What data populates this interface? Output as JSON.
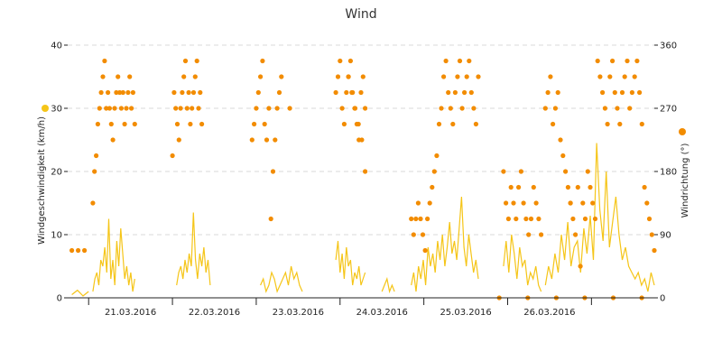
{
  "chart_data": {
    "type": "line+scatter",
    "title": "Wind",
    "colors": {
      "speed": "#f5c518",
      "direction": "#f28c00"
    },
    "left_axis": {
      "label": "Windgeschwindigkeit (km/h)",
      "range": [
        0,
        40
      ],
      "ticks": [
        0,
        10,
        20,
        30,
        40
      ]
    },
    "right_axis": {
      "label": "Windrichtung (°)",
      "range": [
        0,
        360
      ],
      "ticks": [
        0,
        90,
        180,
        270,
        360
      ]
    },
    "x_axis": {
      "range_days": [
        -0.25,
        6.75
      ],
      "tick_labels": [
        "21.03.2016",
        "22.03.2016",
        "23.03.2016",
        "24.03.2016",
        "25.03.2016",
        "26.03.2016"
      ],
      "tick_label_days": [
        0.5,
        1.5,
        2.5,
        3.5,
        4.5,
        5.5
      ],
      "divider_days": [
        0,
        1,
        2,
        3,
        4,
        5,
        6
      ]
    },
    "grid": true,
    "series": [
      {
        "kind": "line",
        "axis": "left",
        "segments": [
          {
            "start": -0.2,
            "end": 0.0,
            "values": [
              0.5,
              1.2,
              0.3,
              1.0
            ]
          },
          {
            "start": 0.05,
            "end": 0.55,
            "values": [
              1,
              3,
              4,
              2,
              6,
              5,
              8,
              4,
              12.5,
              3,
              6,
              2,
              9,
              5,
              11,
              7,
              3,
              5,
              2,
              4,
              1,
              3
            ]
          },
          {
            "start": 1.05,
            "end": 1.45,
            "values": [
              2,
              4,
              5,
              3,
              6,
              4,
              7,
              5,
              13.5,
              6,
              3,
              7,
              5,
              8,
              4,
              6,
              2
            ]
          },
          {
            "start": 2.05,
            "end": 2.55,
            "values": [
              2,
              3,
              1,
              2,
              4,
              3,
              1,
              2,
              3,
              4,
              2,
              5,
              3,
              4,
              2,
              1
            ]
          },
          {
            "start": 2.95,
            "end": 3.3,
            "values": [
              6,
              9,
              4,
              7,
              3,
              8,
              5,
              6,
              2,
              4,
              3,
              5,
              2,
              3,
              4
            ]
          },
          {
            "start": 3.5,
            "end": 3.65,
            "values": [
              1,
              2,
              3,
              1,
              2,
              1
            ]
          },
          {
            "start": 3.85,
            "end": 4.65,
            "values": [
              2,
              4,
              1,
              5,
              3,
              6,
              2,
              8,
              5,
              7,
              4,
              9,
              6,
              10,
              5,
              8,
              12,
              7,
              9,
              6,
              11,
              16,
              8,
              5,
              10,
              7,
              4,
              6,
              3
            ]
          },
          {
            "start": 4.95,
            "end": 5.4,
            "values": [
              5,
              9,
              4,
              10,
              7,
              3,
              8,
              5,
              6,
              2,
              4,
              3,
              5,
              2,
              1
            ]
          },
          {
            "start": 5.45,
            "end": 6.75,
            "values": [
              2,
              5,
              3,
              7,
              4,
              10,
              6,
              12,
              5,
              8,
              9,
              4,
              11,
              7,
              13,
              6,
              24.5,
              14,
              9,
              20,
              8,
              12,
              16,
              10,
              6,
              8,
              5,
              4,
              3,
              4,
              2,
              3,
              1,
              4,
              2
            ]
          }
        ]
      },
      {
        "kind": "scatter",
        "axis": "right",
        "segments": [
          {
            "start": -0.2,
            "end": -0.05,
            "values": [
              67.5,
              67.5,
              67.5
            ]
          },
          {
            "start": 0.05,
            "end": 0.55,
            "values": [
              135,
              180,
              202.5,
              247.5,
              270,
              292.5,
              315,
              337.5,
              270,
              292.5,
              270,
              247.5,
              225,
              270,
              292.5,
              315,
              292.5,
              270,
              292.5,
              247.5,
              270,
              292.5,
              315,
              270,
              292.5,
              247.5
            ]
          },
          {
            "start": 1.0,
            "end": 1.35,
            "values": [
              202.5,
              292.5,
              270,
              247.5,
              225,
              270,
              292.5,
              315,
              337.5,
              270,
              292.5,
              247.5,
              270,
              292.5,
              315,
              337.5,
              270,
              292.5,
              247.5
            ]
          },
          {
            "start": 1.95,
            "end": 2.3,
            "values": [
              225,
              247.5,
              270,
              292.5,
              315,
              337.5,
              247.5,
              225,
              270,
              112.5,
              180,
              225,
              270,
              292.5,
              315
            ]
          },
          {
            "start": 2.4,
            "end": 2.4,
            "values": [
              270
            ]
          },
          {
            "start": 2.95,
            "end": 3.3,
            "values": [
              292.5,
              315,
              337.5,
              270,
              247.5,
              292.5,
              315,
              337.5,
              292.5,
              270,
              247.5,
              225,
              292.5,
              315,
              270
            ]
          },
          {
            "start": 3.1,
            "end": 3.3,
            "values": [
              315,
              292.5,
              270,
              247.5,
              225,
              180
            ]
          },
          {
            "start": 3.85,
            "end": 4.65,
            "values": [
              112.5,
              90,
              112.5,
              135,
              112.5,
              90,
              67.5,
              112.5,
              135,
              157.5,
              180,
              202.5,
              247.5,
              270,
              315,
              337.5,
              292.5,
              270,
              247.5,
              292.5,
              315,
              337.5,
              270,
              292.5,
              315,
              337.5,
              292.5,
              270,
              247.5,
              315
            ]
          },
          {
            "start": 4.95,
            "end": 5.4,
            "values": [
              180,
              135,
              112.5,
              157.5,
              135,
              112.5,
              157.5,
              180,
              135,
              112.5,
              90,
              112.5,
              157.5,
              135,
              112.5,
              90
            ]
          },
          {
            "start": 5.45,
            "end": 5.75,
            "values": [
              270,
              292.5,
              315,
              247.5,
              270,
              292.5,
              225,
              202.5,
              180,
              157.5,
              135
            ]
          },
          {
            "start": 5.75,
            "end": 6.75,
            "values": [
              135,
              112.5,
              90,
              157.5,
              45,
              135,
              112.5,
              180,
              157.5,
              135,
              112.5,
              337.5,
              315,
              292.5,
              270,
              247.5,
              315,
              337.5,
              292.5,
              270,
              247.5,
              292.5,
              315,
              337.5,
              270,
              292.5,
              315,
              337.5,
              292.5,
              247.5,
              157.5,
              135,
              112.5,
              90,
              67.5
            ]
          },
          {
            "start": 4.9,
            "end": 6.6,
            "values": [
              0,
              0,
              0,
              0,
              0,
              0
            ]
          }
        ]
      }
    ]
  }
}
